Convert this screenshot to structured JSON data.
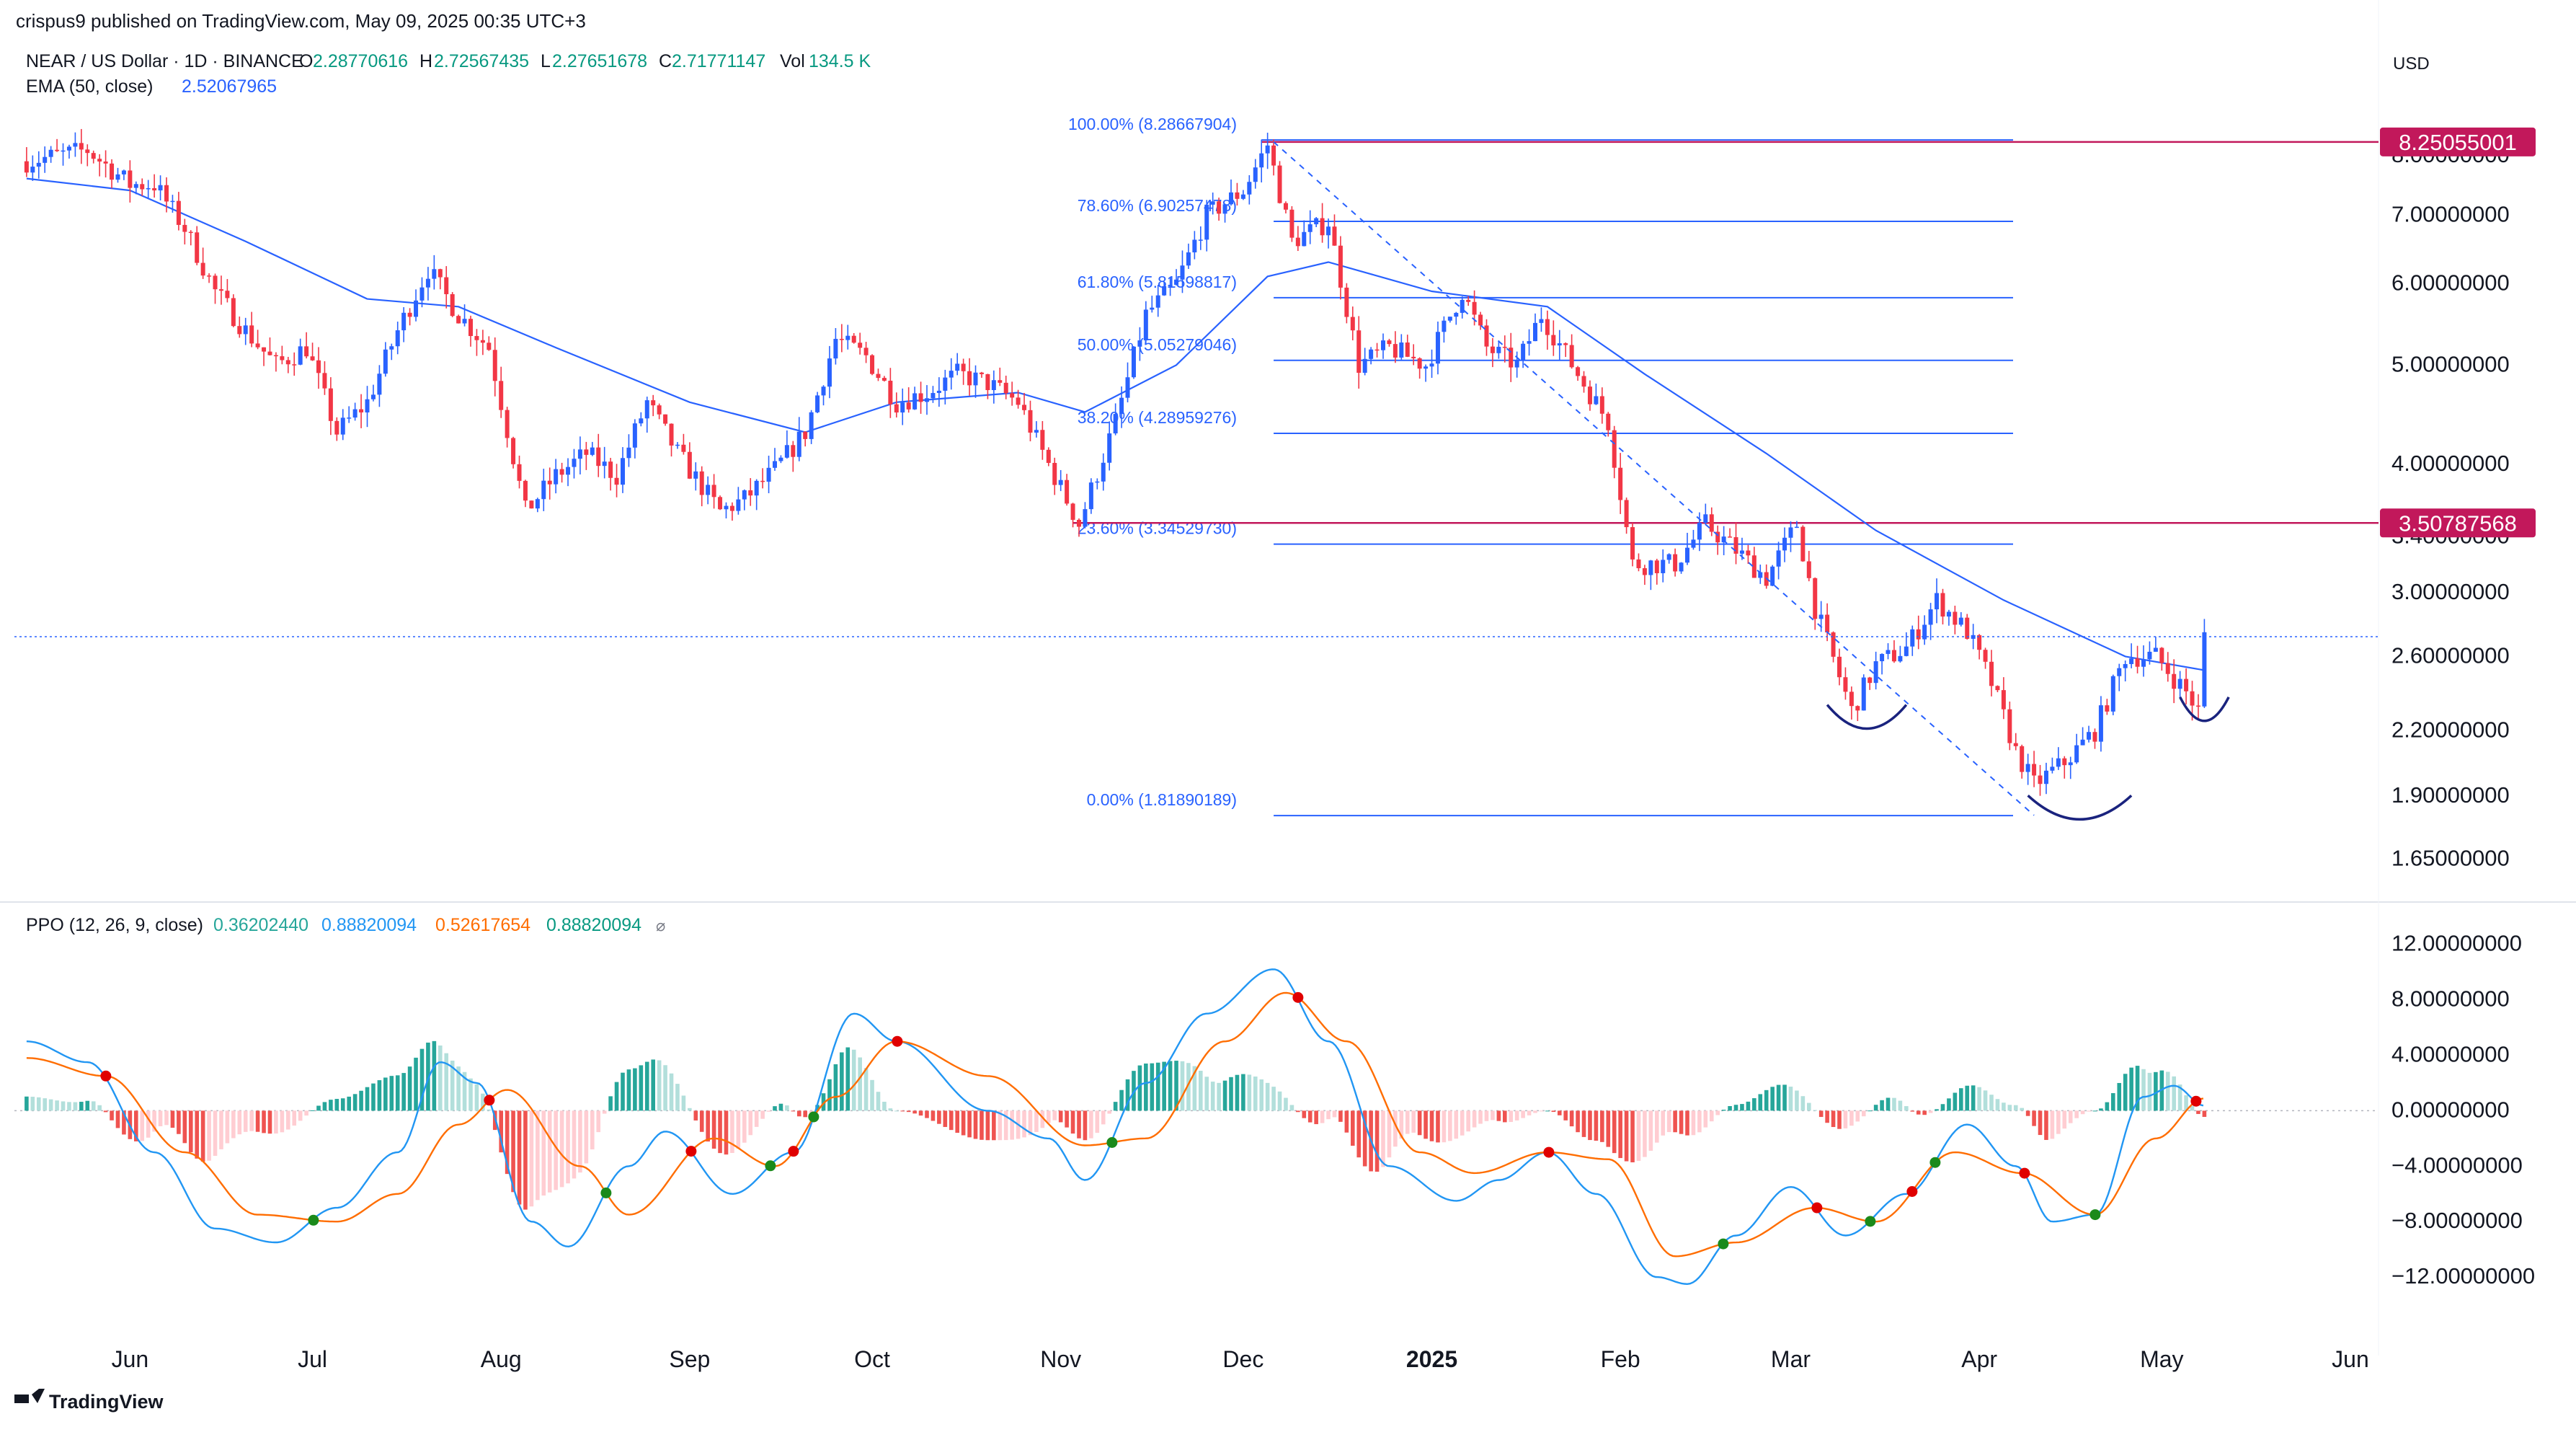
{
  "header": {
    "published": "crispus9 published on TradingView.com, May 09, 2025 00:35 UTC+3",
    "symbol": "NEAR / US Dollar · 1D · BINANCE",
    "o_label": "O",
    "o_value": "2.28770616",
    "h_label": "H",
    "h_value": "2.72567435",
    "l_label": "L",
    "l_value": "2.27651678",
    "c_label": "C",
    "c_value": "2.71771147",
    "vol_label": "Vol",
    "vol_value": "134.5 K",
    "ema_label": "EMA (50, close)",
    "ema_value": "2.52067965",
    "currency": "USD"
  },
  "ppo_legend": {
    "label": "PPO (12, 26, 9, close)",
    "v1": "0.36202440",
    "v2": "0.88820094",
    "v3": "0.52617654",
    "v4": "0.88820094",
    "icon": "⌀"
  },
  "footer": {
    "brand": "TradingView"
  },
  "colors": {
    "up": "#26a69a",
    "down": "#ef5350",
    "up_candle": "#2962ff",
    "down_candle": "#f23645",
    "ema": "#2962ff",
    "fib": "#2962ff",
    "level": "#c2185b",
    "ppo_line": "#2196f3",
    "signal": "#ff6d00",
    "hist_up": "#26a69a",
    "hist_down": "#ef5350"
  },
  "chart_data": [
    {
      "type": "candlestick",
      "title": "NEAR / US Dollar · 1D · BINANCE",
      "x_ticks": [
        "Jun",
        "Jul",
        "Aug",
        "Sep",
        "Oct",
        "Nov",
        "Dec",
        "2025",
        "Feb",
        "Mar",
        "Apr",
        "May",
        "Jun"
      ],
      "y_scale": "log",
      "y_ticks": [
        "8.00000000",
        "7.00000000",
        "6.00000000",
        "5.00000000",
        "4.00000000",
        "3.40000000",
        "3.00000000",
        "2.60000000",
        "2.20000000",
        "1.90000000",
        "1.65000000"
      ],
      "ylim": [
        1.55,
        8.9
      ],
      "horizontal_levels": [
        {
          "label": "8.25055001",
          "value": 8.25055001
        },
        {
          "label": "3.50787568",
          "value": 3.50787568
        }
      ],
      "fibonacci": [
        {
          "label": "100.00% (8.28667904)",
          "value": 8.28667904
        },
        {
          "label": "78.60% (6.90257478)",
          "value": 6.90257478
        },
        {
          "label": "61.80% (5.81598817)",
          "value": 5.81598817
        },
        {
          "label": "50.00% (5.05279046)",
          "value": 5.05279046
        },
        {
          "label": "38.20% (4.28959276)",
          "value": 4.28959276
        },
        {
          "label": "23.60% (3.34529730)",
          "value": 3.3452973
        },
        {
          "label": "0.00% (1.81890189)",
          "value": 1.81890189
        }
      ],
      "close_path": [
        {
          "date": "2024-05-15",
          "close": 7.9
        },
        {
          "date": "2024-05-25",
          "close": 8.1
        },
        {
          "date": "2024-06-01",
          "close": 7.5
        },
        {
          "date": "2024-06-05",
          "close": 7.5
        },
        {
          "date": "2024-06-10",
          "close": 6.8
        },
        {
          "date": "2024-06-15",
          "close": 5.9
        },
        {
          "date": "2024-06-20",
          "close": 5.4
        },
        {
          "date": "2024-06-25",
          "close": 5.0
        },
        {
          "date": "2024-06-30",
          "close": 5.2
        },
        {
          "date": "2024-07-05",
          "close": 4.3
        },
        {
          "date": "2024-07-10",
          "close": 4.6
        },
        {
          "date": "2024-07-15",
          "close": 5.4
        },
        {
          "date": "2024-07-20",
          "close": 6.2
        },
        {
          "date": "2024-07-25",
          "close": 5.6
        },
        {
          "date": "2024-07-30",
          "close": 5.2
        },
        {
          "date": "2024-08-05",
          "close": 3.6
        },
        {
          "date": "2024-08-10",
          "close": 3.9
        },
        {
          "date": "2024-08-15",
          "close": 4.1
        },
        {
          "date": "2024-08-20",
          "close": 3.9
        },
        {
          "date": "2024-08-25",
          "close": 4.6
        },
        {
          "date": "2024-08-30",
          "close": 4.1
        },
        {
          "date": "2024-09-06",
          "close": 3.6
        },
        {
          "date": "2024-09-10",
          "close": 3.7
        },
        {
          "date": "2024-09-15",
          "close": 3.95
        },
        {
          "date": "2024-09-20",
          "close": 4.3
        },
        {
          "date": "2024-09-25",
          "close": 5.3
        },
        {
          "date": "2024-09-30",
          "close": 5.1
        },
        {
          "date": "2024-10-05",
          "close": 4.6
        },
        {
          "date": "2024-10-10",
          "close": 4.7
        },
        {
          "date": "2024-10-15",
          "close": 4.9
        },
        {
          "date": "2024-10-20",
          "close": 4.8
        },
        {
          "date": "2024-10-25",
          "close": 4.6
        },
        {
          "date": "2024-10-30",
          "close": 4.0
        },
        {
          "date": "2024-11-04",
          "close": 3.5
        },
        {
          "date": "2024-11-10",
          "close": 4.4
        },
        {
          "date": "2024-11-15",
          "close": 5.6
        },
        {
          "date": "2024-11-20",
          "close": 6.0
        },
        {
          "date": "2024-11-25",
          "close": 7.0
        },
        {
          "date": "2024-12-01",
          "close": 7.4
        },
        {
          "date": "2024-12-05",
          "close": 8.2
        },
        {
          "date": "2024-12-09",
          "close": 6.6
        },
        {
          "date": "2024-12-15",
          "close": 6.9
        },
        {
          "date": "2024-12-20",
          "close": 5.0
        },
        {
          "date": "2024-12-25",
          "close": 5.2
        },
        {
          "date": "2024-12-31",
          "close": 5.0
        },
        {
          "date": "2025-01-06",
          "close": 5.9
        },
        {
          "date": "2025-01-10",
          "close": 5.2
        },
        {
          "date": "2025-01-15",
          "close": 5.0
        },
        {
          "date": "2025-01-19",
          "close": 5.6
        },
        {
          "date": "2025-01-25",
          "close": 4.9
        },
        {
          "date": "2025-01-30",
          "close": 4.4
        },
        {
          "date": "2025-02-03",
          "close": 3.2
        },
        {
          "date": "2025-02-10",
          "close": 3.2
        },
        {
          "date": "2025-02-15",
          "close": 3.5
        },
        {
          "date": "2025-02-20",
          "close": 3.3
        },
        {
          "date": "2025-02-25",
          "close": 3.1
        },
        {
          "date": "2025-03-02",
          "close": 3.5
        },
        {
          "date": "2025-03-05",
          "close": 2.9
        },
        {
          "date": "2025-03-11",
          "close": 2.3
        },
        {
          "date": "2025-03-15",
          "close": 2.55
        },
        {
          "date": "2025-03-20",
          "close": 2.65
        },
        {
          "date": "2025-03-25",
          "close": 2.95
        },
        {
          "date": "2025-03-30",
          "close": 2.75
        },
        {
          "date": "2025-04-03",
          "close": 2.45
        },
        {
          "date": "2025-04-07",
          "close": 2.1
        },
        {
          "date": "2025-04-10",
          "close": 1.95
        },
        {
          "date": "2025-04-15",
          "close": 2.05
        },
        {
          "date": "2025-04-20",
          "close": 2.2
        },
        {
          "date": "2025-04-25",
          "close": 2.6
        },
        {
          "date": "2025-04-30",
          "close": 2.6
        },
        {
          "date": "2025-05-05",
          "close": 2.4
        },
        {
          "date": "2025-05-07",
          "close": 2.3
        },
        {
          "date": "2025-05-08",
          "close": 2.71771147
        }
      ],
      "ema_path": [
        {
          "date": "2024-05-15",
          "value": 7.6
        },
        {
          "date": "2024-06-01",
          "value": 7.4
        },
        {
          "date": "2024-06-20",
          "value": 6.6
        },
        {
          "date": "2024-07-10",
          "value": 5.8
        },
        {
          "date": "2024-07-25",
          "value": 5.7
        },
        {
          "date": "2024-08-10",
          "value": 5.2
        },
        {
          "date": "2024-09-01",
          "value": 4.6
        },
        {
          "date": "2024-09-20",
          "value": 4.3
        },
        {
          "date": "2024-10-05",
          "value": 4.6
        },
        {
          "date": "2024-10-25",
          "value": 4.7
        },
        {
          "date": "2024-11-05",
          "value": 4.5
        },
        {
          "date": "2024-11-20",
          "value": 5.0
        },
        {
          "date": "2024-12-05",
          "value": 6.1
        },
        {
          "date": "2024-12-15",
          "value": 6.3
        },
        {
          "date": "2025-01-01",
          "value": 5.9
        },
        {
          "date": "2025-01-20",
          "value": 5.7
        },
        {
          "date": "2025-02-05",
          "value": 4.9
        },
        {
          "date": "2025-02-25",
          "value": 4.1
        },
        {
          "date": "2025-03-15",
          "value": 3.45
        },
        {
          "date": "2025-04-05",
          "value": 2.95
        },
        {
          "date": "2025-04-25",
          "value": 2.6
        },
        {
          "date": "2025-05-08",
          "value": 2.52067965
        }
      ],
      "annotations": [
        {
          "shape": "arc",
          "from_date": "2025-03-07",
          "to_date": "2025-03-20",
          "value": 2.28
        },
        {
          "shape": "arc",
          "from_date": "2025-04-09",
          "to_date": "2025-04-26",
          "value": 1.86
        },
        {
          "shape": "arc",
          "from_date": "2025-05-04",
          "to_date": "2025-05-12",
          "value": 2.32
        },
        {
          "shape": "dashed-trend",
          "from_date": "2024-12-06",
          "from_value": 8.25,
          "to_date": "2025-04-10",
          "to_value": 1.82
        }
      ]
    },
    {
      "type": "line+histogram",
      "title": "PPO (12, 26, 9, close)",
      "y_ticks": [
        "12.00000000",
        "8.00000000",
        "4.00000000",
        "0.00000000",
        "−4.00000000",
        "−8.00000000",
        "−12.00000000"
      ],
      "ylim": [
        -13.5,
        12.5
      ],
      "series": [
        {
          "name": "PPO",
          "points": [
            {
              "date": "2024-05-15",
              "value": 5
            },
            {
              "date": "2024-05-25",
              "value": 3.5
            },
            {
              "date": "2024-06-05",
              "value": -3
            },
            {
              "date": "2024-06-15",
              "value": -8.5
            },
            {
              "date": "2024-06-25",
              "value": -9.5
            },
            {
              "date": "2024-07-05",
              "value": -7
            },
            {
              "date": "2024-07-15",
              "value": -3
            },
            {
              "date": "2024-07-22",
              "value": 3.5
            },
            {
              "date": "2024-07-28",
              "value": 2
            },
            {
              "date": "2024-08-06",
              "value": -8
            },
            {
              "date": "2024-08-12",
              "value": -9.8
            },
            {
              "date": "2024-08-22",
              "value": -4
            },
            {
              "date": "2024-08-28",
              "value": -1.5
            },
            {
              "date": "2024-09-08",
              "value": -6
            },
            {
              "date": "2024-09-18",
              "value": -3
            },
            {
              "date": "2024-09-28",
              "value": 7
            },
            {
              "date": "2024-10-05",
              "value": 5
            },
            {
              "date": "2024-10-20",
              "value": 0
            },
            {
              "date": "2024-10-30",
              "value": -2
            },
            {
              "date": "2024-11-05",
              "value": -5
            },
            {
              "date": "2024-11-15",
              "value": 2
            },
            {
              "date": "2024-11-25",
              "value": 7
            },
            {
              "date": "2024-12-06",
              "value": 10.2
            },
            {
              "date": "2024-12-15",
              "value": 5
            },
            {
              "date": "2024-12-25",
              "value": -4
            },
            {
              "date": "2025-01-05",
              "value": -6.5
            },
            {
              "date": "2025-01-12",
              "value": -5
            },
            {
              "date": "2025-01-20",
              "value": -3
            },
            {
              "date": "2025-01-28",
              "value": -6
            },
            {
              "date": "2025-02-07",
              "value": -12
            },
            {
              "date": "2025-02-12",
              "value": -12.5
            },
            {
              "date": "2025-02-20",
              "value": -9
            },
            {
              "date": "2025-03-01",
              "value": -5.5
            },
            {
              "date": "2025-03-10",
              "value": -9
            },
            {
              "date": "2025-03-20",
              "value": -6
            },
            {
              "date": "2025-03-30",
              "value": -1
            },
            {
              "date": "2025-04-07",
              "value": -4
            },
            {
              "date": "2025-04-13",
              "value": -8
            },
            {
              "date": "2025-04-20",
              "value": -7.5
            },
            {
              "date": "2025-04-28",
              "value": 1
            },
            {
              "date": "2025-05-03",
              "value": 1.8
            },
            {
              "date": "2025-05-08",
              "value": 0.3620244
            }
          ]
        },
        {
          "name": "Signal",
          "points": [
            {
              "date": "2024-05-15",
              "value": 3.8
            },
            {
              "date": "2024-05-28",
              "value": 2.5
            },
            {
              "date": "2024-06-10",
              "value": -3
            },
            {
              "date": "2024-06-22",
              "value": -7.5
            },
            {
              "date": "2024-07-05",
              "value": -8
            },
            {
              "date": "2024-07-15",
              "value": -6
            },
            {
              "date": "2024-07-25",
              "value": -1
            },
            {
              "date": "2024-08-02",
              "value": 1.5
            },
            {
              "date": "2024-08-14",
              "value": -4
            },
            {
              "date": "2024-08-22",
              "value": -7.5
            },
            {
              "date": "2024-09-05",
              "value": -2
            },
            {
              "date": "2024-09-15",
              "value": -4
            },
            {
              "date": "2024-09-25",
              "value": 1
            },
            {
              "date": "2024-10-05",
              "value": 5
            },
            {
              "date": "2024-10-20",
              "value": 2.5
            },
            {
              "date": "2024-11-05",
              "value": -2.5
            },
            {
              "date": "2024-11-15",
              "value": -2
            },
            {
              "date": "2024-11-28",
              "value": 5
            },
            {
              "date": "2024-12-08",
              "value": 8.5
            },
            {
              "date": "2024-12-18",
              "value": 5
            },
            {
              "date": "2024-12-30",
              "value": -3
            },
            {
              "date": "2025-01-08",
              "value": -4.5
            },
            {
              "date": "2025-01-20",
              "value": -3
            },
            {
              "date": "2025-01-30",
              "value": -3.5
            },
            {
              "date": "2025-02-10",
              "value": -10.5
            },
            {
              "date": "2025-02-20",
              "value": -9.5
            },
            {
              "date": "2025-03-05",
              "value": -7
            },
            {
              "date": "2025-03-15",
              "value": -8
            },
            {
              "date": "2025-03-28",
              "value": -3
            },
            {
              "date": "2025-04-08",
              "value": -4.5
            },
            {
              "date": "2025-04-20",
              "value": -7.5
            },
            {
              "date": "2025-04-30",
              "value": -2
            },
            {
              "date": "2025-05-08",
              "value": 0.88820094
            }
          ]
        }
      ],
      "histogram_zero": 0
    }
  ]
}
